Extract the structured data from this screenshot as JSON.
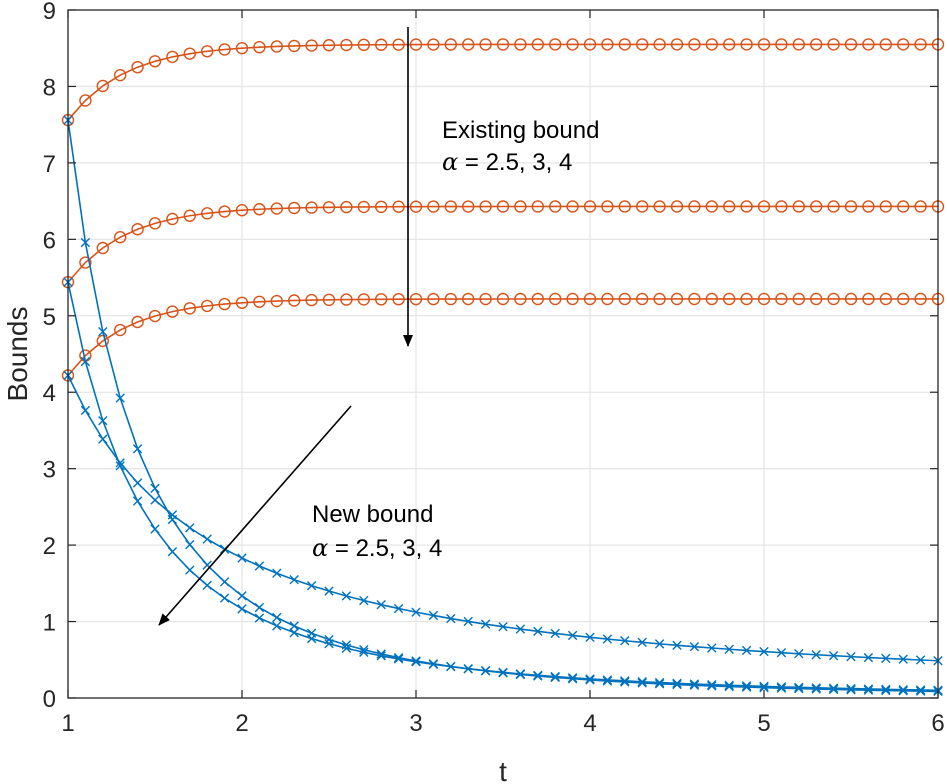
{
  "chart_data": {
    "type": "line",
    "xlabel": "t",
    "ylabel": "Bounds",
    "xlim": [
      1,
      6
    ],
    "ylim": [
      0,
      9
    ],
    "xticks": [
      "1",
      "2",
      "3",
      "4",
      "5",
      "6"
    ],
    "yticks": [
      "0",
      "1",
      "2",
      "3",
      "4",
      "5",
      "6",
      "7",
      "8",
      "9"
    ],
    "grid": true,
    "colors": {
      "new": "#0072BD",
      "existing": "#D95319",
      "grid": "#e6e6e6",
      "axis": "#262626"
    },
    "series": [
      {
        "group": "existing",
        "marker": "circle",
        "alpha": 2.5,
        "start": 4.22,
        "limit": 5.22,
        "rate": 3.0
      },
      {
        "group": "existing",
        "marker": "circle",
        "alpha": 3,
        "start": 5.44,
        "limit": 6.43,
        "rate": 3.0
      },
      {
        "group": "existing",
        "marker": "circle",
        "alpha": 4,
        "start": 7.56,
        "limit": 8.55,
        "rate": 3.0
      },
      {
        "group": "new",
        "marker": "x",
        "alpha": 4,
        "start": 7.56,
        "limit": 0.0,
        "rate": 0.4
      },
      {
        "group": "new",
        "marker": "x",
        "alpha": 3,
        "start": 5.44,
        "limit": 0.0,
        "rate": 0.45
      },
      {
        "group": "new",
        "marker": "x",
        "alpha": 2.5,
        "start": 4.22,
        "limit": 0.0,
        "rate": 0.83
      }
    ],
    "sample_step": 0.1,
    "annotations": {
      "existing": {
        "line1": "Existing bound",
        "alpha_symbol": "α",
        "line2_rest": " = 2.5, 3, 4"
      },
      "new": {
        "line1": "New bound",
        "alpha_symbol": "α",
        "line2_rest": " = 2.5, 3, 4"
      }
    }
  }
}
